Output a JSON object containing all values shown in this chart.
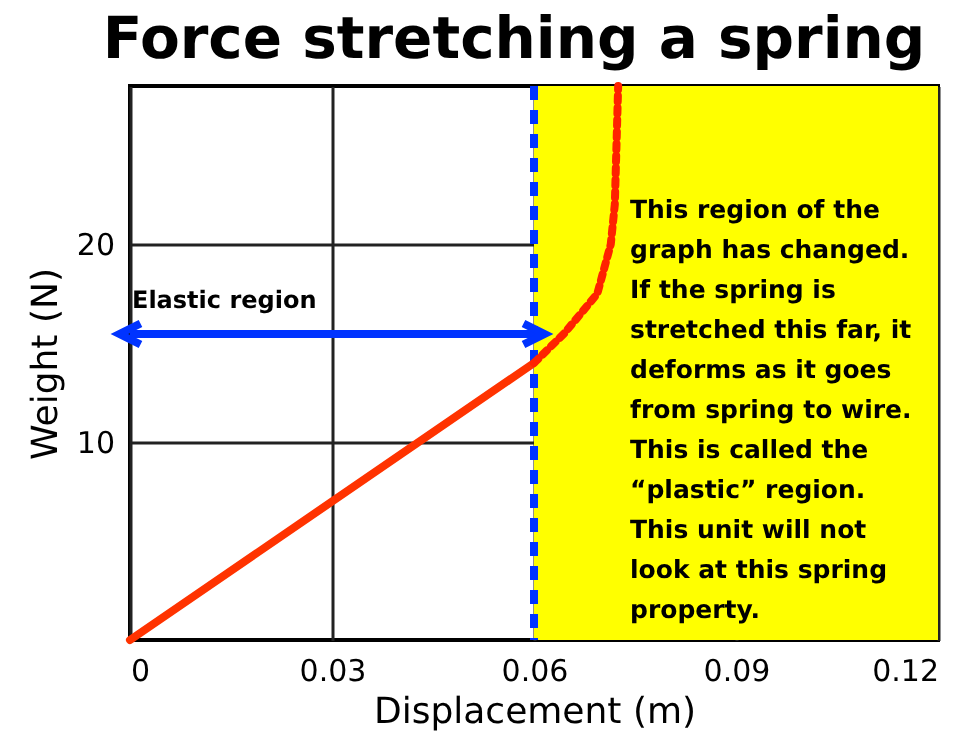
{
  "chart_data": {
    "type": "line",
    "title": "Force stretching a spring",
    "xlabel": "Displacement (m)",
    "ylabel": "Weight (N)",
    "xlim": [
      0,
      0.12
    ],
    "xticks": [
      0,
      0.03,
      0.06,
      0.09,
      0.12
    ],
    "ylim": [
      0,
      28
    ],
    "yticks": [
      10,
      20
    ],
    "grid": true,
    "series": [
      {
        "color": "#ff3300",
        "line_style": "solid",
        "x": [
          0,
          0.06
        ],
        "values": [
          0,
          14
        ]
      },
      {
        "color": "#ff2200",
        "line_style": "dotted",
        "x": [
          0.06,
          0.0645,
          0.0694,
          0.0714,
          0.072,
          0.0725
        ],
        "values": [
          14,
          15.5,
          17.5,
          20,
          22,
          28
        ]
      }
    ],
    "ref_lines": [
      {
        "axis": "x",
        "value": 0.06,
        "color": "#0033ff",
        "line_style": "dashed"
      }
    ],
    "bands": [
      {
        "axis": "x",
        "from": 0.06,
        "to": 0.12,
        "color": "#ffff00",
        "label": "This region of the\ngraph has changed.\nIf the spring is\nstretched this far, it\ndeforms as it goes\nfrom spring to wire.\nThis is called the\n“plastic” region.\nThis unit will not\nlook at this spring\nproperty."
      }
    ],
    "annotations": [
      "Elastic region"
    ]
  }
}
